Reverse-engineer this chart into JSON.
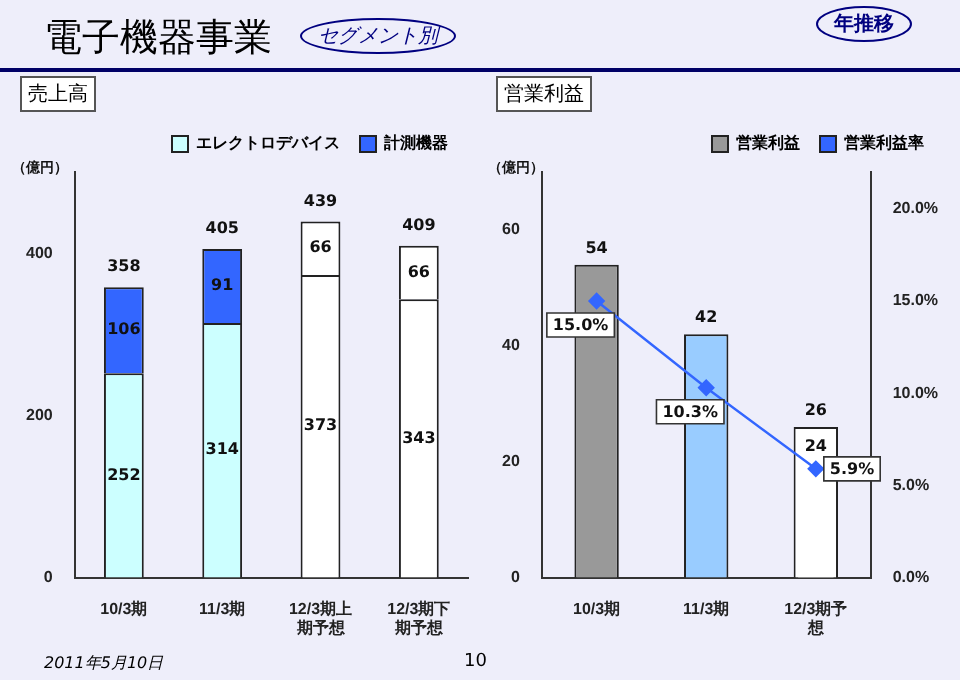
{
  "chart_data": [
    {
      "type": "other",
      "title": "電子機器事業",
      "annotations": [
        "セグメント別",
        "年推移",
        "2011年5月10日",
        "10"
      ]
    },
    {
      "type": "bar",
      "title": "売上高",
      "ylabel": "（億円）",
      "categories": [
        "10/3期",
        "11/3期",
        "12/3期上期予想",
        "12/3期下期予想"
      ],
      "stacked": true,
      "series": [
        {
          "name": "エレクトロデバイス",
          "color": "#ccffff",
          "colors": [
            "#ccffff",
            "#ccffff",
            "#ffffff",
            "#ffffff"
          ],
          "values": [
            252,
            314,
            373,
            343
          ]
        },
        {
          "name": "計測機器",
          "color": "#3366ff",
          "colors": [
            "#3366ff",
            "#3366ff",
            "#ffffff",
            "#ffffff"
          ],
          "values": [
            106,
            91,
            66,
            66
          ]
        }
      ],
      "totals": [
        "358",
        "405",
        "439",
        "409"
      ],
      "data_labels": true,
      "ylim": [
        0,
        500
      ],
      "yticks": [
        0,
        200,
        400
      ],
      "grid": false,
      "legend": "top"
    },
    {
      "type": "bar",
      "title": "営業利益",
      "ylabel": "（億円）",
      "categories": [
        "10/3期",
        "11/3期",
        "12/3期予想"
      ],
      "series": [
        {
          "name": "営業利益",
          "color": "#999999",
          "colors": [
            "#999999",
            "#99ccff",
            "#ffffff"
          ],
          "values": [
            54,
            42,
            26
          ]
        },
        {
          "color": "#ffffff",
          "values": [
            null,
            null,
            24
          ]
        },
        {
          "name": "営業利益率",
          "type": "line",
          "axis": "y2",
          "color": "#3366ff",
          "values": [
            15.0,
            10.3,
            5.9
          ],
          "value_labels": [
            "15.0%",
            "10.3%",
            "5.9%"
          ]
        }
      ],
      "data_labels": true,
      "ylim": [
        0,
        70
      ],
      "yticks": [
        0,
        20,
        40,
        60
      ],
      "y2lim": [
        0,
        22
      ],
      "y2ticks": [
        {
          "value": 0,
          "label": "0.0%"
        },
        {
          "value": 5,
          "label": "5.0%"
        },
        {
          "value": 10,
          "label": "10.0%"
        },
        {
          "value": 15,
          "label": "15.0%"
        },
        {
          "value": 20,
          "label": "20.0%"
        }
      ],
      "grid": false,
      "legend": "top",
      "marker": "diamond",
      "line_style": "solid"
    }
  ]
}
